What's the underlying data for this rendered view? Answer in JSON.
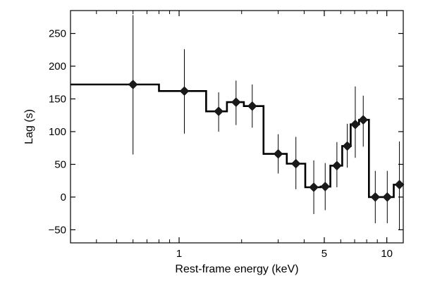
{
  "chart_data": {
    "type": "scatter",
    "title": "",
    "xlabel": "Rest-frame energy (keV)",
    "ylabel": "Lag (s)",
    "x_scale": "log",
    "xlim": [
      0.3,
      12
    ],
    "ylim": [
      -70,
      285
    ],
    "x_ticks": [
      {
        "value": 1,
        "label": "1"
      },
      {
        "value": 5,
        "label": "5"
      },
      {
        "value": 10,
        "label": "10"
      }
    ],
    "x_minor_ticks": [
      0.4,
      0.5,
      0.6,
      0.7,
      0.8,
      0.9,
      2,
      3,
      4,
      6,
      7,
      8,
      9
    ],
    "y_ticks": [
      {
        "value": -50,
        "label": "−50"
      },
      {
        "value": 0,
        "label": "0"
      },
      {
        "value": 50,
        "label": "50"
      },
      {
        "value": 100,
        "label": "100"
      },
      {
        "value": 150,
        "label": "150"
      },
      {
        "value": 200,
        "label": "200"
      },
      {
        "value": 250,
        "label": "250"
      }
    ],
    "grid": false,
    "legend": "none",
    "marker": "diamond",
    "series": [
      {
        "points": [
          {
            "x": 0.6,
            "y": 172,
            "y_low": 65,
            "y_high": 278
          },
          {
            "x": 1.06,
            "y": 162,
            "y_low": 97,
            "y_high": 226
          },
          {
            "x": 1.55,
            "y": 131,
            "y_low": 100,
            "y_high": 160
          },
          {
            "x": 1.88,
            "y": 145,
            "y_low": 110,
            "y_high": 178
          },
          {
            "x": 2.25,
            "y": 139,
            "y_low": 106,
            "y_high": 172
          },
          {
            "x": 3.0,
            "y": 66,
            "y_low": 36,
            "y_high": 96
          },
          {
            "x": 3.65,
            "y": 51,
            "y_low": 12,
            "y_high": 92
          },
          {
            "x": 4.45,
            "y": 15,
            "y_low": -26,
            "y_high": 56
          },
          {
            "x": 5.05,
            "y": 16,
            "y_low": -20,
            "y_high": 52
          },
          {
            "x": 5.75,
            "y": 48,
            "y_low": 15,
            "y_high": 84
          },
          {
            "x": 6.45,
            "y": 78,
            "y_low": 45,
            "y_high": 112
          },
          {
            "x": 7.05,
            "y": 111,
            "y_low": 60,
            "y_high": 169
          },
          {
            "x": 7.7,
            "y": 118,
            "y_low": 77,
            "y_high": 155
          },
          {
            "x": 8.8,
            "y": 0,
            "y_low": -40,
            "y_high": 40
          },
          {
            "x": 10.05,
            "y": 0,
            "y_low": -40,
            "y_high": 40
          },
          {
            "x": 11.5,
            "y": 19,
            "y_low": -50,
            "y_high": 85
          }
        ]
      }
    ],
    "step_line": {
      "edges": [
        0.3,
        0.8,
        1.35,
        1.7,
        2.05,
        2.55,
        3.3,
        4.05,
        4.8,
        5.35,
        6.1,
        6.7,
        7.35,
        8.2,
        9.4,
        10.8,
        12.0
      ],
      "values": [
        172,
        162,
        131,
        145,
        139,
        66,
        51,
        15,
        16,
        48,
        78,
        111,
        118,
        0,
        0,
        19
      ]
    }
  }
}
